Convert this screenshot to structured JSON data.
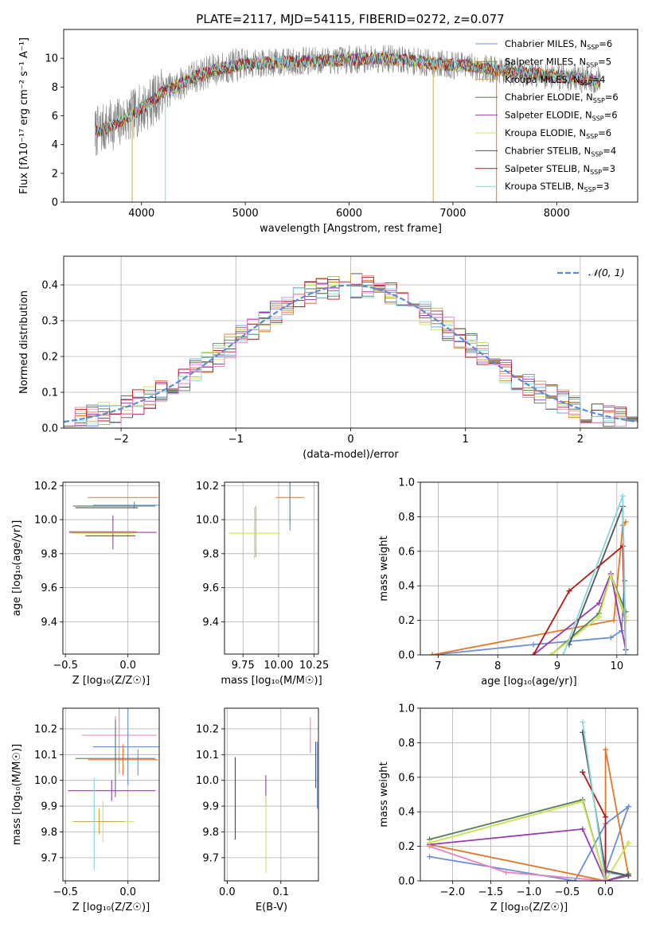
{
  "figure_title": "PLATE=2117, MJD=54115, FIBERID=0272, z=0.077",
  "chart_data": [
    {
      "id": "spectrum",
      "type": "line",
      "xlabel": "wavelength [Angstrom, rest frame]",
      "ylabel": "Flux [fλ10⁻¹⁷ erg cm⁻² s⁻¹ A⁻¹]",
      "xlim": [
        3250,
        8780
      ],
      "ylim": [
        0,
        12
      ],
      "xticks": [
        "4000",
        "5000",
        "6000",
        "7000",
        "8000"
      ],
      "yticks": [
        "0",
        "2",
        "4",
        "6",
        "8",
        "10"
      ],
      "continuum": {
        "x": [
          3550,
          3600,
          3700,
          3800,
          3900,
          4000,
          4100,
          4200,
          4300,
          4400,
          4500,
          4700,
          5000,
          5300,
          5600,
          6000,
          6300,
          6600,
          6900,
          7200,
          7500,
          7800,
          8100,
          8400
        ],
        "y": [
          4.8,
          5.0,
          5.3,
          5.6,
          6.0,
          6.5,
          7.0,
          7.6,
          7.9,
          8.3,
          8.7,
          9.2,
          9.6,
          9.7,
          9.8,
          9.9,
          10.0,
          9.8,
          9.6,
          9.4,
          9.1,
          8.9,
          8.7,
          8.4
        ]
      },
      "series": [
        {
          "name": "Chabrier MILES, N_SSP=6",
          "color": "#6a8fd6",
          "label": "Chabrier MILES, N",
          "sub": "SSP",
          "suffix": "=6"
        },
        {
          "name": "Salpeter MILES, N_SSP=5",
          "color": "#e37627",
          "label": "Salpeter MILES, N",
          "sub": "SSP",
          "suffix": "=5"
        },
        {
          "name": "Kroupa MILES, N_SSP=4",
          "color": "#c9a64a",
          "label": "Kroupa MILES, N",
          "sub": "SSP",
          "suffix": "=4"
        },
        {
          "name": "Chabrier ELODIE, N_SSP=6",
          "color": "#5a7a5a",
          "label": "Chabrier ELODIE, N",
          "sub": "SSP",
          "suffix": "=6"
        },
        {
          "name": "Salpeter ELODIE, N_SSP=6",
          "color": "#9a3ab0",
          "label": "Salpeter ELODIE, N",
          "sub": "SSP",
          "suffix": "=6"
        },
        {
          "name": "Kroupa ELODIE, N_SSP=6",
          "color": "#c8e85a",
          "label": "Kroupa ELODIE, N",
          "sub": "SSP",
          "suffix": "=6"
        },
        {
          "name": "Chabrier STELIB, N_SSP=4",
          "color": "#555555",
          "label": "Chabrier STELIB, N",
          "sub": "SSP",
          "suffix": "=4"
        },
        {
          "name": "Salpeter STELIB, N_SSP=3",
          "color": "#b01a1a",
          "label": "Salpeter STELIB, N",
          "sub": "SSP",
          "suffix": "=3"
        },
        {
          "name": "Kroupa STELIB, N_SSP=3",
          "color": "#86d8dc",
          "label": "Kroupa STELIB, N",
          "sub": "SSP",
          "suffix": "=3"
        }
      ]
    },
    {
      "id": "residuals",
      "type": "line",
      "xlabel": "(data-model)/error",
      "ylabel": "Normed distribution",
      "xlim": [
        -2.5,
        2.5
      ],
      "ylim": [
        0,
        0.48
      ],
      "xticks": [
        -2,
        -1,
        0,
        1,
        2
      ],
      "yticks": [
        0.0,
        0.1,
        0.2,
        0.3,
        0.4
      ],
      "legend": "𝒩(0, 1)",
      "normal_color": "#5b8cd6",
      "histogram_colors": [
        "#6a8fd6",
        "#e37627",
        "#c9a64a",
        "#5a7a5a",
        "#9a3ab0",
        "#c8e85a",
        "#555555",
        "#b01a1a",
        "#86d8dc",
        "#e884c0"
      ]
    },
    {
      "id": "age_vs_Z",
      "type": "scatter",
      "xlabel": "Z [log₁₀(Z/Z☉)]",
      "ylabel": "age  [log₁₀(age/yr)]",
      "xlim": [
        -0.52,
        0.25
      ],
      "ylim": [
        9.21,
        10.22
      ],
      "xticks": [
        -0.5,
        0.0
      ],
      "yticks": [
        9.4,
        9.6,
        9.8,
        10.0,
        10.2
      ],
      "points": [
        {
          "x": -0.04,
          "xerr": 0.28,
          "y": 10.13,
          "yerr": 0.0,
          "color": "#e37627"
        },
        {
          "x": 0.05,
          "xerr": 0.33,
          "y": 10.085,
          "yerr": 0.02,
          "color": "#6a8fd6"
        },
        {
          "x": -0.11,
          "xerr": 0.33,
          "y": 10.08,
          "yerr": 0.0,
          "color": "#5a7a5a"
        },
        {
          "x": -0.17,
          "xerr": 0.25,
          "y": 10.07,
          "yerr": 0.0,
          "color": "#555555"
        },
        {
          "x": -0.12,
          "xerr": 0.35,
          "y": 9.925,
          "yerr": 0.1,
          "color": "#9a3ab0"
        },
        {
          "x": -0.2,
          "xerr": 0.27,
          "y": 9.93,
          "yerr": 0.0,
          "color": "#c9a64a"
        },
        {
          "x": -0.2,
          "xerr": 0.25,
          "y": 9.92,
          "yerr": 0.0,
          "color": "#c8e85a"
        },
        {
          "x": -0.14,
          "xerr": 0.2,
          "y": 9.905,
          "yerr": 0.0,
          "color": "#b01a1a"
        }
      ]
    },
    {
      "id": "age_vs_mass",
      "type": "scatter",
      "xlabel": "mass [log₁₀(M/M☉)]",
      "ylabel": "",
      "xlim": [
        9.62,
        10.28
      ],
      "ylim": [
        9.21,
        10.22
      ],
      "xticks": [
        9.75,
        10.0,
        10.25
      ],
      "yticks": [
        9.4,
        9.6,
        9.8,
        10.0,
        10.2
      ],
      "points": [
        {
          "x": 10.08,
          "xerr": 0.1,
          "y": 10.13,
          "color": "#e37627"
        },
        {
          "x": 10.08,
          "xerr": 0.0,
          "y": 10.085,
          "color": "#6a8fd6"
        },
        {
          "x": 9.84,
          "xerr": 0.0,
          "y": 9.93,
          "color": "#c9a64a"
        },
        {
          "x": 9.83,
          "xerr": 0.18,
          "y": 9.92,
          "color": "#c8e85a"
        }
      ]
    },
    {
      "id": "weight_vs_age",
      "type": "line",
      "xlabel": "age  [log₁₀(age/yr)]",
      "ylabel": "mass weight",
      "xlim": [
        6.7,
        10.35
      ],
      "ylim": [
        0,
        1.0
      ],
      "xticks": [
        7,
        8,
        9,
        10
      ],
      "yticks": [
        0.0,
        0.2,
        0.4,
        0.6,
        0.8,
        1.0
      ],
      "series": [
        {
          "color": "#6a8fd6",
          "x": [
            6.9,
            8.6,
            9.9,
            10.08,
            10.13
          ],
          "y": [
            0.0,
            0.06,
            0.1,
            0.14,
            0.43
          ]
        },
        {
          "color": "#e37627",
          "x": [
            6.9,
            9.95,
            10.1,
            10.15
          ],
          "y": [
            0.0,
            0.2,
            0.75,
            0.77
          ]
        },
        {
          "color": "#c9a64a",
          "x": [
            8.9,
            9.7,
            9.9,
            10.15
          ],
          "y": [
            0.0,
            0.22,
            0.47,
            0.2
          ]
        },
        {
          "color": "#5a7a5a",
          "x": [
            8.9,
            9.7,
            9.9,
            10.15
          ],
          "y": [
            0.0,
            0.24,
            0.46,
            0.25
          ]
        },
        {
          "color": "#9a3ab0",
          "x": [
            8.6,
            9.7,
            9.9,
            10.15
          ],
          "y": [
            0.0,
            0.3,
            0.47,
            0.03
          ]
        },
        {
          "color": "#c8e85a",
          "x": [
            8.9,
            9.7,
            9.9,
            10.15
          ],
          "y": [
            0.0,
            0.22,
            0.46,
            0.22
          ]
        },
        {
          "color": "#555555",
          "x": [
            9.2,
            10.1,
            10.15
          ],
          "y": [
            0.06,
            0.86,
            0.03
          ]
        },
        {
          "color": "#b01a1a",
          "x": [
            8.6,
            9.2,
            10.1,
            10.15
          ],
          "y": [
            0.0,
            0.37,
            0.63,
            0.0
          ]
        },
        {
          "color": "#86d8dc",
          "x": [
            9.1,
            10.1,
            10.15
          ],
          "y": [
            0.0,
            0.92,
            0.0
          ]
        }
      ]
    },
    {
      "id": "mass_vs_Z",
      "type": "scatter",
      "xlabel": "Z [log₁₀(Z/Z☉)]",
      "ylabel": "mass [log₁₀(M/M☉)]",
      "xlim": [
        -0.52,
        0.25
      ],
      "ylim": [
        9.61,
        10.28
      ],
      "xticks": [
        -0.5,
        0.0
      ],
      "yticks": [
        9.7,
        9.8,
        9.9,
        10.0,
        10.1,
        10.2
      ],
      "points": [
        {
          "x": -0.1,
          "xerr": 0.0,
          "y": 10.2,
          "yerr": 0.05,
          "color": "#e884c0"
        },
        {
          "x": -0.07,
          "xerr": 0.3,
          "y": 10.175,
          "color": "#e884c0"
        },
        {
          "x": 0.08,
          "xerr": 0.0,
          "y": 10.07,
          "yerr": 0.05,
          "color": "#6a8fd6"
        },
        {
          "x": 0.0,
          "xerr": 0.28,
          "y": 10.13,
          "color": "#6a8fd6"
        },
        {
          "x": -0.04,
          "xerr": 0.28,
          "y": 10.08,
          "yerr": 0.06,
          "color": "#e37627"
        },
        {
          "x": -0.1,
          "xerr": 0.32,
          "y": 10.085,
          "color": "#5a7a5a"
        },
        {
          "x": -0.13,
          "xerr": 0.35,
          "y": 9.96,
          "yerr": 0.04,
          "color": "#9a3ab0"
        },
        {
          "x": -0.2,
          "xerr": 0.25,
          "y": 9.84,
          "yerr": 0.08,
          "color": "#c8e85a"
        },
        {
          "x": -0.23,
          "xerr": 0.2,
          "y": 9.84,
          "yerr": 0.05,
          "color": "#c9a64a"
        },
        {
          "x": -0.27,
          "xerr": 0.0,
          "y": 9.83,
          "yerr": 0.18,
          "color": "#86d8dc"
        }
      ]
    },
    {
      "id": "mass_vs_EBV",
      "type": "scatter",
      "xlabel": "E(B-V)",
      "ylabel": "",
      "xlim": [
        -0.005,
        0.17
      ],
      "ylim": [
        9.61,
        10.28
      ],
      "xticks": [
        0.0,
        0.1
      ],
      "yticks": [
        9.7,
        9.8,
        9.9,
        10.0,
        10.1,
        10.2
      ],
      "points": [
        {
          "x": 0.0,
          "y": 10.165,
          "yerr": 0.0,
          "color": "#86d8dc"
        },
        {
          "x": 0.015,
          "y": 9.93,
          "yerr": 0.16,
          "color": "#b01a1a"
        },
        {
          "x": 0.072,
          "y": 9.96,
          "yerr": 0.06,
          "color": "#9a3ab0"
        },
        {
          "x": 0.072,
          "y": 9.79,
          "yerr": 0.15,
          "color": "#c8e85a"
        },
        {
          "x": 0.155,
          "y": 10.175,
          "yerr": 0.07,
          "color": "#e884c0"
        },
        {
          "x": 0.165,
          "y": 10.06,
          "yerr": 0.09,
          "color": "#555555"
        },
        {
          "x": 0.168,
          "y": 10.02,
          "yerr": 0.13,
          "color": "#6a8fd6"
        }
      ]
    },
    {
      "id": "weight_vs_Z",
      "type": "line",
      "xlabel": "Z [log₁₀(Z/Z☉)]",
      "ylabel": "mass weight",
      "xlim": [
        -2.42,
        0.42
      ],
      "ylim": [
        0,
        1.0
      ],
      "xticks": [
        -2.0,
        -1.5,
        -1.0,
        -0.5,
        0.0
      ],
      "yticks": [
        0.0,
        0.2,
        0.4,
        0.6,
        0.8,
        1.0
      ],
      "series": [
        {
          "color": "#6a8fd6",
          "x": [
            -2.3,
            -0.4,
            0.0,
            0.3,
            0.0,
            0.3
          ],
          "y": [
            0.14,
            0.0,
            0.33,
            0.43,
            0.05,
            0.03
          ]
        },
        {
          "color": "#e37627",
          "x": [
            -2.3,
            0.0,
            0.0,
            0.3
          ],
          "y": [
            0.21,
            0.0,
            0.76,
            0.03
          ]
        },
        {
          "color": "#c9a64a",
          "x": [
            -2.3,
            -0.3,
            0.0,
            0.3
          ],
          "y": [
            0.22,
            0.46,
            0.0,
            0.22
          ]
        },
        {
          "color": "#5a7a5a",
          "x": [
            -2.3,
            -0.3,
            0.0,
            0.3
          ],
          "y": [
            0.24,
            0.47,
            0.0,
            0.04
          ]
        },
        {
          "color": "#9a3ab0",
          "x": [
            -2.3,
            -0.3,
            0.0,
            0.3
          ],
          "y": [
            0.21,
            0.3,
            0.0,
            0.03
          ]
        },
        {
          "color": "#c8e85a",
          "x": [
            -2.3,
            -0.3,
            0.0,
            0.3
          ],
          "y": [
            0.22,
            0.46,
            0.0,
            0.22
          ]
        },
        {
          "color": "#555555",
          "x": [
            -0.3,
            0.0,
            0.3
          ],
          "y": [
            0.86,
            0.06,
            0.03
          ]
        },
        {
          "color": "#b01a1a",
          "x": [
            -0.3,
            -0.0,
            0.0
          ],
          "y": [
            0.63,
            0.37,
            0.0
          ]
        },
        {
          "color": "#86d8dc",
          "x": [
            -0.3,
            0.0,
            0.0
          ],
          "y": [
            0.92,
            0.0,
            0.0
          ]
        },
        {
          "color": "#e884c0",
          "x": [
            -2.3,
            -1.3,
            0.0
          ],
          "y": [
            0.2,
            0.05,
            0.0
          ]
        }
      ]
    }
  ]
}
